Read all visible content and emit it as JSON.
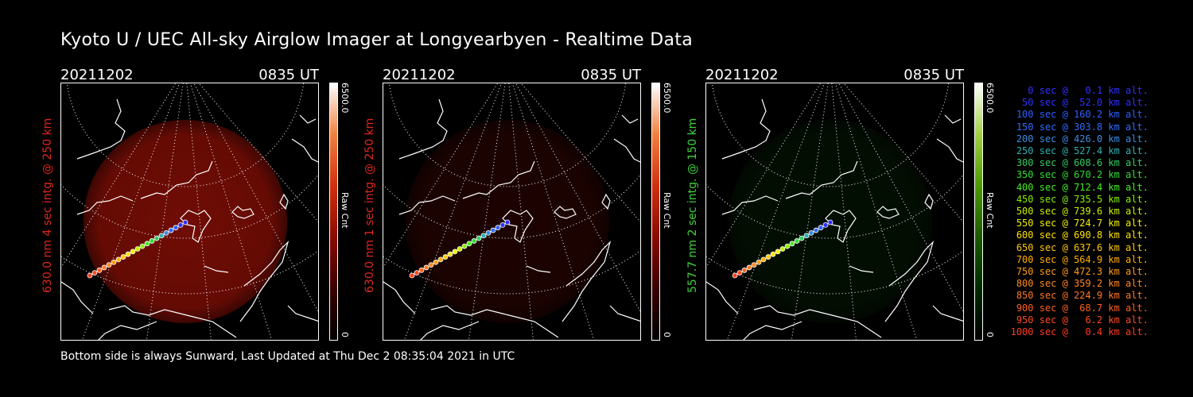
{
  "title": "Kyoto U / UEC All-sky Airglow Imager at Longyearbyen - Realtime Data",
  "footer": "Bottom side is always Sunward, Last Updated at Thu Dec  2 08:35:04 2021 in UTC",
  "panels": [
    {
      "date": "20211202",
      "time": "0835 UT",
      "ylabel": "630.0 nm 4 sec intg. @ 250 km",
      "cbar_max": "6500.0",
      "cbar_min": "0",
      "cbar_label": "Raw Cnt",
      "color": "#e0261a",
      "intensity": 0.62,
      "glow": "red"
    },
    {
      "date": "20211202",
      "time": "0835 UT",
      "ylabel": "630.0 nm 1 sec intg. @ 250 km",
      "cbar_max": "6500.0",
      "cbar_min": "0",
      "cbar_label": "Raw Cnt",
      "color": "#e0261a",
      "intensity": 0.16,
      "glow": "red"
    },
    {
      "date": "20211202",
      "time": "0835 UT",
      "ylabel": "557.7 nm 2 sec intg. @ 150 km",
      "cbar_max": "6500.0",
      "cbar_min": "0",
      "cbar_label": "Raw Cnt",
      "color": "#3fd23a",
      "intensity": 0.16,
      "glow": "green"
    }
  ],
  "legend": [
    {
      "text": "   0 sec @   0.1 km alt.",
      "color": "#3030ff"
    },
    {
      "text": "  50 sec @  52.0 km alt.",
      "color": "#3030ff"
    },
    {
      "text": " 100 sec @ 160.2 km alt.",
      "color": "#2f5fff"
    },
    {
      "text": " 150 sec @ 303.8 km alt.",
      "color": "#2f6cff"
    },
    {
      "text": " 200 sec @ 426.0 km alt.",
      "color": "#3d8de0"
    },
    {
      "text": " 250 sec @ 527.4 km alt.",
      "color": "#2fb0b0"
    },
    {
      "text": " 300 sec @ 608.6 km alt.",
      "color": "#33cc66"
    },
    {
      "text": " 350 sec @ 670.2 km alt.",
      "color": "#33dd33"
    },
    {
      "text": " 400 sec @ 712.4 km alt.",
      "color": "#44ee22"
    },
    {
      "text": " 450 sec @ 735.5 km alt.",
      "color": "#88f000"
    },
    {
      "text": " 500 sec @ 739.6 km alt.",
      "color": "#c8f000"
    },
    {
      "text": " 550 sec @ 724.7 km alt.",
      "color": "#f0f000"
    },
    {
      "text": " 600 sec @ 690.8 km alt.",
      "color": "#ffe000"
    },
    {
      "text": " 650 sec @ 637.6 km alt.",
      "color": "#ffc800"
    },
    {
      "text": " 700 sec @ 564.9 km alt.",
      "color": "#ffb000"
    },
    {
      "text": " 750 sec @ 472.3 km alt.",
      "color": "#ff9c10"
    },
    {
      "text": " 800 sec @ 359.2 km alt.",
      "color": "#ff8820"
    },
    {
      "text": " 850 sec @ 224.9 km alt.",
      "color": "#ff7820"
    },
    {
      "text": " 900 sec @  68.7 km alt.",
      "color": "#ff6020"
    },
    {
      "text": " 950 sec @   6.2 km alt.",
      "color": "#ff4a20"
    },
    {
      "text": "1000 sec @   0.4 km alt.",
      "color": "#ff3a20"
    }
  ]
}
